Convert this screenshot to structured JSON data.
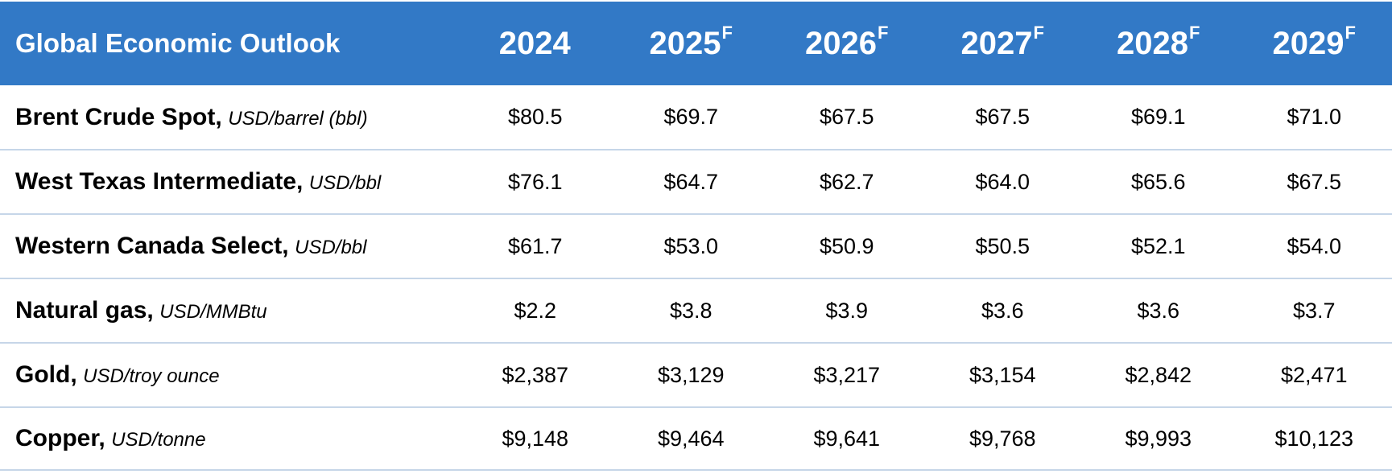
{
  "header": {
    "title": "Global Economic Outlook",
    "years": [
      {
        "year": "2024",
        "marker": ""
      },
      {
        "year": "2025",
        "marker": "F"
      },
      {
        "year": "2026",
        "marker": "F"
      },
      {
        "year": "2027",
        "marker": "F"
      },
      {
        "year": "2028",
        "marker": "F"
      },
      {
        "year": "2029",
        "marker": "F"
      }
    ]
  },
  "rows": [
    {
      "name": "Brent Crude Spot,",
      "unit": "USD/barrel (bbl)",
      "values": [
        "$80.5",
        "$69.7",
        "$67.5",
        "$67.5",
        "$69.1",
        "$71.0"
      ]
    },
    {
      "name": "West Texas Intermediate,",
      "unit": "USD/bbl",
      "values": [
        "$76.1",
        "$64.7",
        "$62.7",
        "$64.0",
        "$65.6",
        "$67.5"
      ]
    },
    {
      "name": "Western Canada Select,",
      "unit": "USD/bbl",
      "values": [
        "$61.7",
        "$53.0",
        "$50.9",
        "$50.5",
        "$52.1",
        "$54.0"
      ]
    },
    {
      "name": "Natural gas,",
      "unit": "USD/MMBtu",
      "values": [
        "$2.2",
        "$3.8",
        "$3.9",
        "$3.6",
        "$3.6",
        "$3.7"
      ]
    },
    {
      "name": "Gold,",
      "unit": "USD/troy ounce",
      "values": [
        "$2,387",
        "$3,129",
        "$3,217",
        "$3,154",
        "$2,842",
        "$2,471"
      ]
    },
    {
      "name": "Copper,",
      "unit": "USD/tonne",
      "values": [
        "$9,148",
        "$9,464",
        "$9,641",
        "$9,768",
        "$9,993",
        "$10,123"
      ]
    }
  ],
  "colors": {
    "header_bg": "#3279c6",
    "header_text": "#ffffff",
    "row_divider": "#c6d6e8"
  }
}
